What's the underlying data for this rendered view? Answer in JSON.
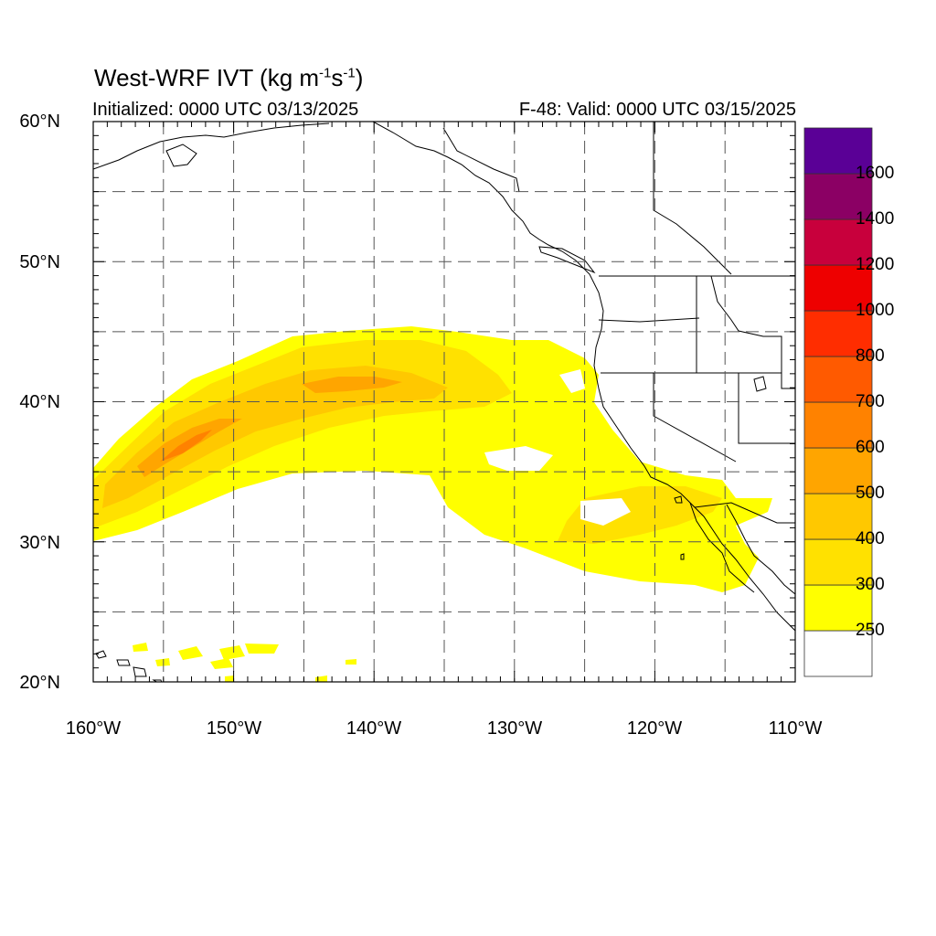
{
  "title": {
    "prefix": "West-WRF IVT (kg m",
    "exp1": "-1",
    "mid": "s",
    "exp2": "-1",
    "suffix": ")"
  },
  "subtitle_left": "Initialized: 0000 UTC 03/13/2025",
  "subtitle_right": "F-48: Valid: 0000 UTC 03/15/2025",
  "lat_labels": [
    "60°N",
    "50°N",
    "40°N",
    "30°N",
    "20°N"
  ],
  "lon_labels": [
    "160°W",
    "150°W",
    "140°W",
    "130°W",
    "120°W",
    "110°W"
  ],
  "map_extent": {
    "lon": [
      -160,
      -110
    ],
    "lat": [
      20,
      60
    ]
  },
  "grid": {
    "dashed": true,
    "spacing_deg": 5
  },
  "colorbar": {
    "levels": [
      "250",
      "300",
      "400",
      "500",
      "600",
      "700",
      "800",
      "1000",
      "1200",
      "1400",
      "1600"
    ],
    "colors": [
      "#ffffff",
      "#ffff00",
      "#ffe100",
      "#ffc800",
      "#ffa500",
      "#ff8200",
      "#ff5a00",
      "#ff2d00",
      "#ee0000",
      "#c8003c",
      "#8b0064",
      "#5a0096"
    ]
  }
}
